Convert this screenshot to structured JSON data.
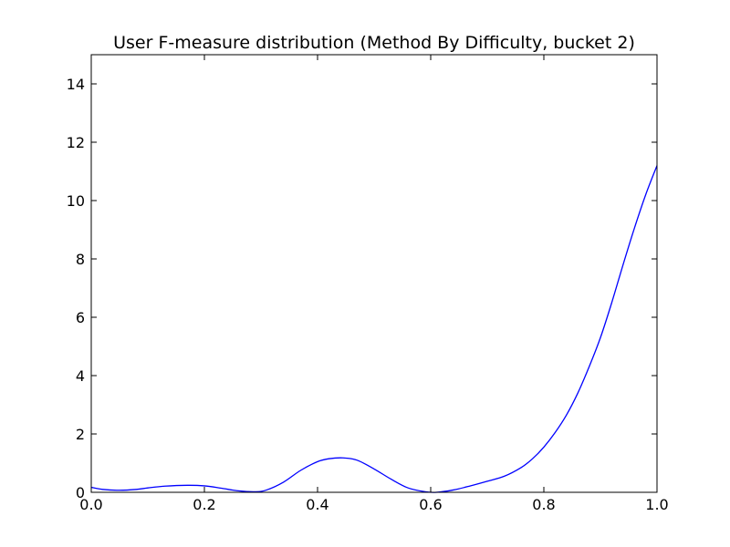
{
  "chart_data": {
    "type": "line",
    "title": "User F-measure distribution (Method By Difficulty, bucket 2)",
    "xlabel": "",
    "ylabel": "",
    "xlim": [
      0.0,
      1.0
    ],
    "ylim": [
      0,
      15
    ],
    "x_ticks": [
      0.0,
      0.2,
      0.4,
      0.6,
      0.8,
      1.0
    ],
    "x_tick_labels": [
      "0.0",
      "0.2",
      "0.4",
      "0.6",
      "0.8",
      "1.0"
    ],
    "y_ticks": [
      0,
      2,
      4,
      6,
      8,
      10,
      12,
      14
    ],
    "y_tick_labels": [
      "0",
      "2",
      "4",
      "6",
      "8",
      "10",
      "12",
      "14"
    ],
    "grid": false,
    "series": [
      {
        "color": "#0000ff",
        "x": [
          0.0,
          0.02,
          0.05,
          0.08,
          0.1,
          0.13,
          0.17,
          0.2,
          0.23,
          0.26,
          0.29,
          0.31,
          0.34,
          0.37,
          0.4,
          0.42,
          0.445,
          0.47,
          0.5,
          0.53,
          0.56,
          0.59,
          0.61,
          0.64,
          0.67,
          0.7,
          0.73,
          0.76,
          0.78,
          0.8,
          0.82,
          0.84,
          0.86,
          0.88,
          0.9,
          0.92,
          0.94,
          0.96,
          0.98,
          1.0
        ],
        "values": [
          0.17,
          0.1,
          0.07,
          0.1,
          0.15,
          0.21,
          0.24,
          0.22,
          0.14,
          0.05,
          0.02,
          0.08,
          0.35,
          0.75,
          1.05,
          1.15,
          1.18,
          1.1,
          0.8,
          0.45,
          0.15,
          0.02,
          0.0,
          0.08,
          0.22,
          0.38,
          0.55,
          0.85,
          1.15,
          1.55,
          2.05,
          2.65,
          3.4,
          4.3,
          5.3,
          6.5,
          7.8,
          9.05,
          10.2,
          11.2
        ]
      }
    ]
  }
}
